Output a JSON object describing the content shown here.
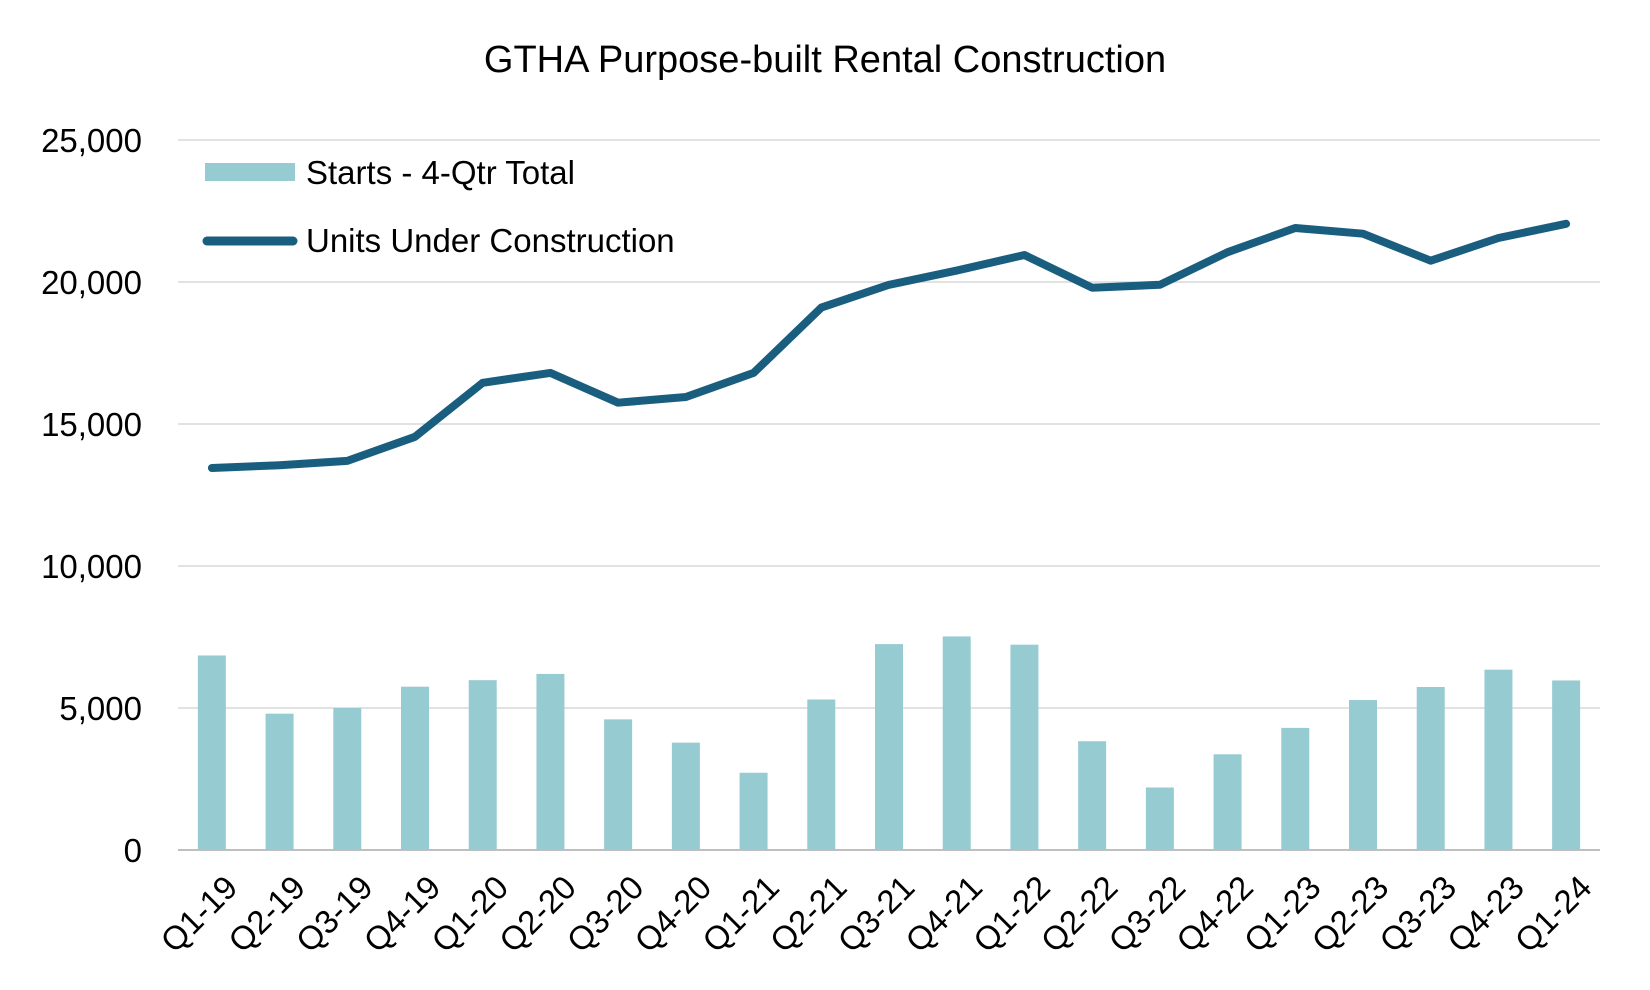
{
  "chart_data": {
    "type": "bar",
    "title": "GTHA Purpose-built Rental Construction",
    "xlabel": "",
    "ylabel": "",
    "ylim": [
      0,
      25000
    ],
    "y_ticks": [
      0,
      5000,
      10000,
      15000,
      20000,
      25000
    ],
    "y_tick_labels": [
      "0",
      "5,000",
      "10,000",
      "15,000",
      "20,000",
      "25,000"
    ],
    "grid": true,
    "legend_position": "top-left",
    "categories": [
      "Q1-19",
      "Q2-19",
      "Q3-19",
      "Q4-19",
      "Q1-20",
      "Q2-20",
      "Q3-20",
      "Q4-20",
      "Q1-21",
      "Q2-21",
      "Q3-21",
      "Q4-21",
      "Q1-22",
      "Q2-22",
      "Q3-22",
      "Q4-22",
      "Q1-23",
      "Q2-23",
      "Q3-23",
      "Q4-23",
      "Q1-24"
    ],
    "series": [
      {
        "name": "Starts - 4-Qtr Total",
        "type": "bar",
        "color": "#96cbd1",
        "values": [
          6850,
          4800,
          5000,
          5750,
          5980,
          6200,
          4600,
          3780,
          2720,
          5300,
          7250,
          7520,
          7230,
          3830,
          2200,
          3370,
          4300,
          5280,
          5740,
          6350,
          5970
        ]
      },
      {
        "name": "Units Under Construction",
        "type": "line",
        "color": "#1a5e7f",
        "values": [
          13450,
          13550,
          13700,
          14550,
          16450,
          16800,
          15750,
          15950,
          16800,
          19100,
          19900,
          20400,
          20950,
          19800,
          19900,
          21050,
          21900,
          21700,
          20750,
          21550,
          22050
        ]
      }
    ]
  }
}
